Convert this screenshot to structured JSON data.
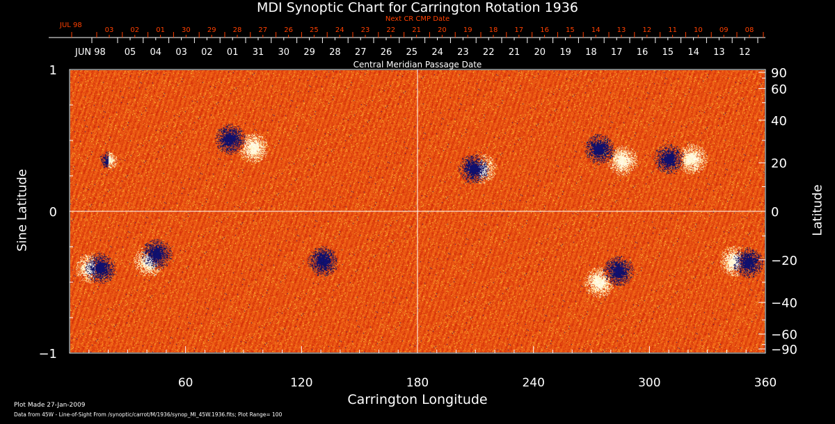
{
  "chart_data": {
    "type": "heatmap",
    "title": "MDI Synoptic Chart for Carrington Rotation 1936",
    "xlabel": "Carrington Longitude",
    "ylabel_left": "Sine Latitude",
    "ylabel_right": "Latitude",
    "xlim": [
      0,
      360
    ],
    "ylim": [
      -1,
      1
    ],
    "x_ticks": [
      "60",
      "120",
      "180",
      "240",
      "300",
      "360"
    ],
    "x_tick_values": [
      60,
      120,
      180,
      240,
      300,
      360
    ],
    "y_left_ticks": [
      "1",
      "0",
      "−1"
    ],
    "y_left_tick_values": [
      1,
      0,
      -1
    ],
    "y_right_ticks": [
      "90",
      "60",
      "40",
      "20",
      "0",
      "−20",
      "−40",
      "−60",
      "−90"
    ],
    "y_right_tick_values": [
      90,
      60,
      40,
      20,
      0,
      -20,
      -40,
      -60,
      -90
    ],
    "top_axis_red": {
      "title": "Next CR CMP Date",
      "month_label": "JUL 98",
      "labels": [
        "03",
        "02",
        "01",
        "30",
        "29",
        "28",
        "27",
        "26",
        "25",
        "24",
        "23",
        "22",
        "21",
        "20",
        "19",
        "18",
        "17",
        "16",
        "15",
        "14",
        "13",
        "12",
        "11",
        "10",
        "09",
        "08"
      ]
    },
    "top_axis_white": {
      "title": "Central Meridian Passage Date",
      "month_label": "JUN 98",
      "labels": [
        "05",
        "04",
        "03",
        "02",
        "01",
        "31",
        "30",
        "29",
        "28",
        "27",
        "26",
        "25",
        "24",
        "23",
        "22",
        "21",
        "20",
        "19",
        "18",
        "17",
        "16",
        "15",
        "14",
        "13",
        "12"
      ]
    },
    "plot_range": 100,
    "colors": {
      "negative": "#101060",
      "background_low": "#d83010",
      "background_high": "#ff8a00",
      "positive": "#ffffff",
      "red_axis": "#ff4000"
    },
    "features": [
      {
        "lon": 20,
        "sinlat": 0.36,
        "polarity": "mixed"
      },
      {
        "lon": 83,
        "sinlat": 0.51,
        "polarity": "negative"
      },
      {
        "lon": 95,
        "sinlat": 0.45,
        "polarity": "positive"
      },
      {
        "lon": 209,
        "sinlat": 0.3,
        "polarity": "negative"
      },
      {
        "lon": 213,
        "sinlat": 0.3,
        "polarity": "positive"
      },
      {
        "lon": 274,
        "sinlat": 0.44,
        "polarity": "negative"
      },
      {
        "lon": 286,
        "sinlat": 0.36,
        "polarity": "positive"
      },
      {
        "lon": 310,
        "sinlat": 0.37,
        "polarity": "negative"
      },
      {
        "lon": 322,
        "sinlat": 0.37,
        "polarity": "positive"
      },
      {
        "lon": 16,
        "sinlat": -0.4,
        "polarity": "negative"
      },
      {
        "lon": 11,
        "sinlat": -0.4,
        "polarity": "positive"
      },
      {
        "lon": 41,
        "sinlat": -0.35,
        "polarity": "positive"
      },
      {
        "lon": 45,
        "sinlat": -0.3,
        "polarity": "negative"
      },
      {
        "lon": 131,
        "sinlat": -0.35,
        "polarity": "negative"
      },
      {
        "lon": 284,
        "sinlat": -0.42,
        "polarity": "negative"
      },
      {
        "lon": 274,
        "sinlat": -0.5,
        "polarity": "positive"
      },
      {
        "lon": 351,
        "sinlat": -0.36,
        "polarity": "negative"
      },
      {
        "lon": 344,
        "sinlat": -0.35,
        "polarity": "positive"
      }
    ]
  },
  "footer": {
    "plot_made": "Plot Made 27-Jan-2009",
    "data_from": "Data from 45W - Line-of-Sight From /synoptic/carrot/M/1936/synop_Ml_45W.1936.fits; Plot Range=  100"
  }
}
